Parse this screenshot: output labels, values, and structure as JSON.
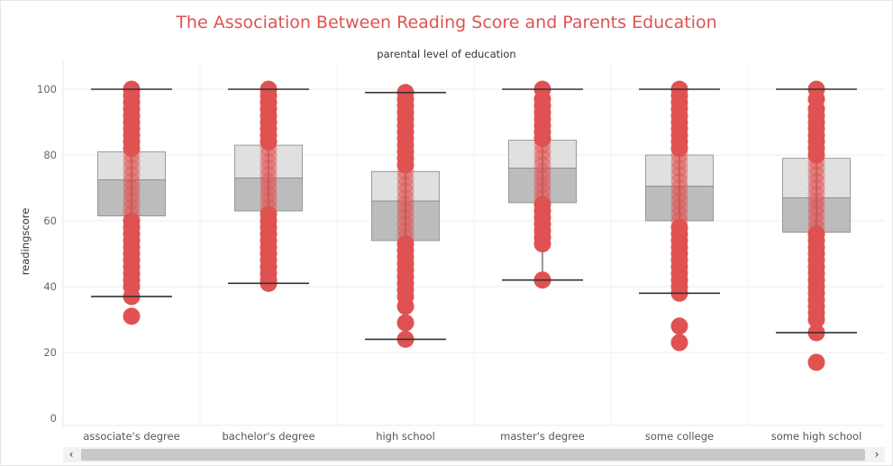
{
  "chart_data": {
    "type": "box",
    "title": "The Association Between Reading Score and Parents Education",
    "column_header": "parental level of education",
    "ylabel": "readingscore",
    "ylim": [
      0,
      100
    ],
    "yticks": [
      0,
      20,
      40,
      60,
      80,
      100
    ],
    "grid": true,
    "colors": {
      "title": "#e05252",
      "points": "#e05252",
      "box_upper": "#e0e0e0",
      "box_lower": "#bcbcbc",
      "whisker": "#333333",
      "grid": "#ececec"
    },
    "categories": [
      {
        "name": "associate's degree",
        "whisker_low": 37,
        "q1": 61.5,
        "median": 72.5,
        "q3": 81,
        "whisker_high": 100,
        "points": [
          31,
          37,
          40,
          42,
          44,
          46,
          48,
          50,
          52,
          54,
          56,
          58,
          60,
          62,
          64,
          66,
          68,
          70,
          72,
          74,
          76,
          78,
          80,
          82,
          84,
          86,
          88,
          90,
          92,
          94,
          96,
          98,
          100
        ]
      },
      {
        "name": "bachelor's degree",
        "whisker_low": 41,
        "q1": 63,
        "median": 73,
        "q3": 83,
        "whisker_high": 100,
        "points": [
          41,
          42,
          44,
          46,
          48,
          50,
          52,
          54,
          56,
          58,
          60,
          62,
          64,
          66,
          68,
          70,
          72,
          74,
          76,
          78,
          80,
          82,
          84,
          86,
          88,
          90,
          92,
          94,
          96,
          98,
          100
        ]
      },
      {
        "name": "high school",
        "whisker_low": 24,
        "q1": 54,
        "median": 66,
        "q3": 75,
        "whisker_high": 99,
        "points": [
          24,
          29,
          34,
          37,
          39,
          41,
          43,
          45,
          47,
          49,
          51,
          53,
          55,
          57,
          59,
          61,
          63,
          65,
          67,
          69,
          71,
          73,
          75,
          77,
          79,
          81,
          83,
          85,
          87,
          89,
          91,
          93,
          95,
          97,
          99
        ]
      },
      {
        "name": "master's degree",
        "whisker_low": 42,
        "q1": 65.5,
        "median": 76,
        "q3": 84.5,
        "whisker_high": 100,
        "points": [
          42,
          53,
          55,
          57,
          59,
          61,
          63,
          65,
          67,
          69,
          71,
          73,
          75,
          77,
          79,
          81,
          83,
          85,
          87,
          89,
          91,
          93,
          95,
          97,
          100
        ]
      },
      {
        "name": "some college",
        "whisker_low": 38,
        "q1": 60,
        "median": 70.5,
        "q3": 80,
        "whisker_high": 100,
        "points": [
          23,
          28,
          38,
          40,
          42,
          44,
          46,
          48,
          50,
          52,
          54,
          56,
          58,
          60,
          62,
          64,
          66,
          68,
          70,
          72,
          74,
          76,
          78,
          80,
          82,
          84,
          86,
          88,
          90,
          92,
          94,
          96,
          98,
          100
        ]
      },
      {
        "name": "some high school",
        "whisker_low": 26,
        "q1": 56.5,
        "median": 67,
        "q3": 79,
        "whisker_high": 100,
        "points": [
          17,
          26,
          30,
          32,
          34,
          36,
          38,
          40,
          42,
          44,
          46,
          48,
          50,
          52,
          54,
          56,
          58,
          60,
          62,
          64,
          66,
          68,
          70,
          72,
          74,
          76,
          78,
          80,
          82,
          84,
          86,
          88,
          90,
          92,
          94,
          97,
          100
        ]
      }
    ]
  },
  "scrollbar": {
    "left_arrow": "‹",
    "right_arrow": "›"
  }
}
